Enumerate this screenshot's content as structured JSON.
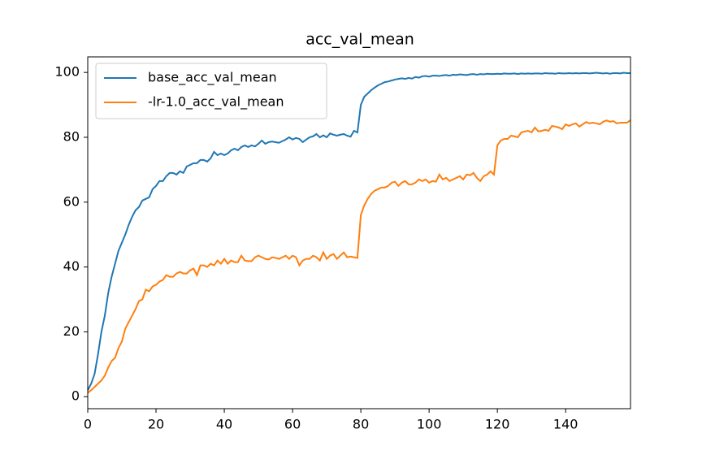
{
  "chart_data": {
    "type": "line",
    "title": "acc_val_mean",
    "x": [
      0,
      1,
      2,
      3,
      4,
      5,
      6,
      7,
      8,
      9,
      10,
      11,
      12,
      13,
      14,
      15,
      16,
      17,
      18,
      19,
      20,
      21,
      22,
      23,
      24,
      25,
      26,
      27,
      28,
      29,
      30,
      31,
      32,
      33,
      34,
      35,
      36,
      37,
      38,
      39,
      40,
      41,
      42,
      43,
      44,
      45,
      46,
      47,
      48,
      49,
      50,
      51,
      52,
      53,
      54,
      55,
      56,
      57,
      58,
      59,
      60,
      61,
      62,
      63,
      64,
      65,
      66,
      67,
      68,
      69,
      70,
      71,
      72,
      73,
      74,
      75,
      76,
      77,
      78,
      79,
      80,
      81,
      82,
      83,
      84,
      85,
      86,
      87,
      88,
      89,
      90,
      91,
      92,
      93,
      94,
      95,
      96,
      97,
      98,
      99,
      100,
      101,
      102,
      103,
      104,
      105,
      106,
      107,
      108,
      109,
      110,
      111,
      112,
      113,
      114,
      115,
      116,
      117,
      118,
      119,
      120,
      121,
      122,
      123,
      124,
      125,
      126,
      127,
      128,
      129,
      130,
      131,
      132,
      133,
      134,
      135,
      136,
      137,
      138,
      139,
      140,
      141,
      142,
      143,
      144,
      145,
      146,
      147,
      148,
      149,
      150,
      151,
      152,
      153,
      154,
      155,
      156,
      157,
      158,
      159
    ],
    "series": [
      {
        "name": "base_acc_val_mean",
        "color": "#1f77b4",
        "values": [
          2,
          4,
          7,
          13,
          20,
          25,
          32,
          37,
          41,
          45,
          47.5,
          50,
          53,
          55.5,
          57.5,
          58.5,
          60.5,
          61,
          61.5,
          64,
          65,
          66.5,
          66.5,
          68,
          69,
          69,
          68.5,
          69.5,
          69,
          71,
          71.5,
          72,
          72,
          73,
          73,
          72.5,
          73.5,
          75.5,
          74.5,
          75,
          74.5,
          75,
          76,
          76.5,
          76,
          77,
          77.5,
          77,
          77.5,
          77.2,
          78,
          79,
          78,
          78.5,
          78.7,
          78.5,
          78.3,
          78.8,
          79.3,
          80,
          79.3,
          79.8,
          79.5,
          78.5,
          79.3,
          80,
          80.3,
          81,
          80,
          80.6,
          80,
          81.2,
          80.8,
          80.5,
          80.8,
          81,
          80.5,
          80.2,
          82,
          81.5,
          90,
          92.5,
          93.5,
          94.5,
          95.3,
          96,
          96.5,
          97,
          97.2,
          97.5,
          97.8,
          98,
          98.2,
          98,
          98.3,
          98.1,
          98.6,
          98.4,
          98.8,
          98.9,
          98.7,
          99,
          99,
          98.9,
          99.1,
          99.2,
          99,
          99.3,
          99.2,
          99.4,
          99.3,
          99.2,
          99.4,
          99.5,
          99.3,
          99.5,
          99.4,
          99.6,
          99.5,
          99.5,
          99.6,
          99.5,
          99.7,
          99.6,
          99.6,
          99.7,
          99.5,
          99.7,
          99.6,
          99.7,
          99.6,
          99.7,
          99.7,
          99.6,
          99.8,
          99.7,
          99.7,
          99.6,
          99.8,
          99.7,
          99.7,
          99.8,
          99.7,
          99.8,
          99.7,
          99.8,
          99.8,
          99.7,
          99.8,
          99.9,
          99.8,
          99.7,
          99.8,
          99.6,
          99.8,
          99.8,
          99.7,
          99.9,
          99.8,
          99.8
        ]
      },
      {
        "name": "-lr-1.0_acc_val_mean",
        "color": "#ff7f0e",
        "values": [
          1.2,
          2,
          3,
          4,
          5,
          6.5,
          9,
          11,
          12,
          15,
          17,
          21,
          23,
          25,
          27,
          29.5,
          30,
          33,
          32.5,
          34,
          34.5,
          35.5,
          36,
          37.5,
          37,
          37,
          38,
          38.5,
          38,
          38,
          39,
          39.5,
          37.5,
          40.5,
          40.5,
          40,
          41,
          40.5,
          42,
          41,
          42.5,
          41,
          42,
          41.5,
          41.5,
          43.5,
          42,
          41.8,
          41.8,
          43,
          43.5,
          43,
          42.5,
          42.3,
          43,
          42.8,
          42.5,
          43,
          43.5,
          42.5,
          43.5,
          43,
          40.5,
          42,
          42.5,
          42.5,
          43.5,
          43,
          42,
          44.5,
          42.5,
          43.5,
          44,
          42.5,
          43.5,
          44.5,
          43,
          43.2,
          43,
          42.8,
          56,
          59,
          61,
          62.5,
          63.5,
          64,
          64.5,
          64.5,
          65,
          66,
          66.3,
          65,
          66,
          66.5,
          65.5,
          65.5,
          66,
          67,
          66.5,
          67,
          66,
          66.5,
          66.3,
          68.5,
          67,
          67.5,
          66.5,
          67,
          67.5,
          68,
          67,
          68.5,
          68.3,
          69,
          67.5,
          66.5,
          68,
          68.5,
          69.5,
          68.5,
          77.5,
          79,
          79.5,
          79.5,
          80.5,
          80.3,
          80,
          81.5,
          81.8,
          82,
          81.5,
          83,
          81.8,
          82,
          82.3,
          82,
          83.5,
          83.3,
          83,
          82.5,
          84,
          83.5,
          84,
          84.3,
          83.3,
          84,
          84.7,
          84.3,
          84.5,
          84.3,
          84,
          84.8,
          85.2,
          84.8,
          85,
          84.3,
          84.5,
          84.5,
          84.5,
          85.3
        ]
      }
    ],
    "xlim": [
      0,
      159
    ],
    "ylim": [
      -3.7,
      104.8
    ],
    "xticks": [
      0,
      20,
      40,
      60,
      80,
      100,
      120,
      140
    ],
    "yticks": [
      0,
      20,
      40,
      60,
      80,
      100
    ],
    "legend": "upper left"
  }
}
